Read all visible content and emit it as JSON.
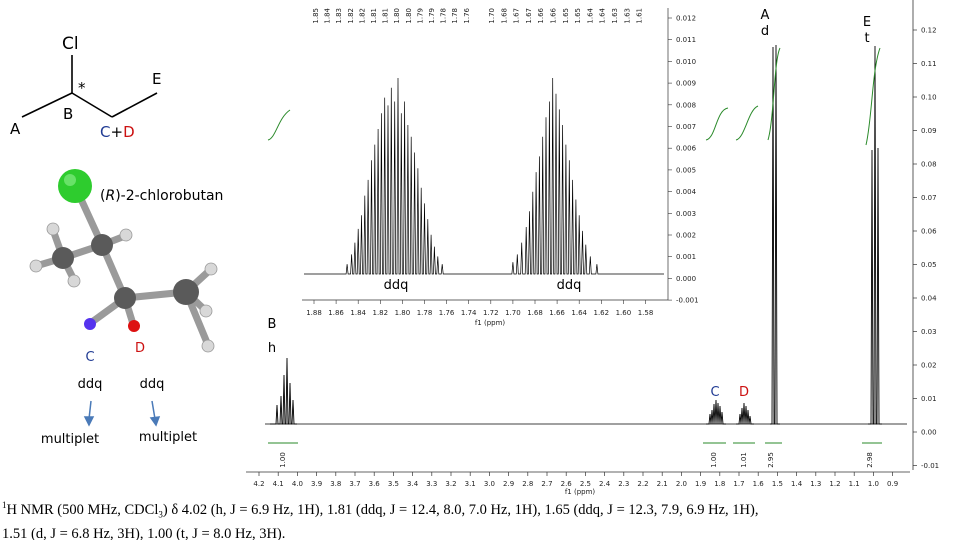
{
  "structure": {
    "cl_label": "Cl",
    "star": "*",
    "label_A": "A",
    "label_B": "B",
    "label_C": "C",
    "label_plus": "+",
    "label_D": "D",
    "label_E": "E",
    "compound_prefix": "(",
    "compound_R": "R",
    "compound_suffix": ")-2-chlorobutan"
  },
  "colors": {
    "carbon": "#555555",
    "chlorine": "#22cc22",
    "hydrogen": "#dddddd",
    "diastereotopic_C": "#5533ee",
    "diastereotopic_D": "#dd1111",
    "label_blue": "#1f3a93",
    "label_red": "#cc1111",
    "integral": "#2a8a2a",
    "arrow": "#4a7ab8"
  },
  "annotations": {
    "C_label": "C",
    "C_mult": "ddq",
    "C_desc": "multiplet",
    "D_label": "D",
    "D_mult": "ddq",
    "D_desc": "multiplet",
    "B_label": "B",
    "B_mult": "h",
    "A_label": "A",
    "A_mult": "d",
    "E_label": "E",
    "E_mult": "t",
    "C_peak_label": "C",
    "D_peak_label": "D",
    "inset_left_mult": "ddq",
    "inset_right_mult": "ddq"
  },
  "main_spectrum": {
    "x_ticks": [
      "4.2",
      "4.1",
      "4.0",
      "3.9",
      "3.8",
      "3.7",
      "3.6",
      "3.5",
      "3.4",
      "3.3",
      "3.2",
      "3.1",
      "3.0",
      "2.9",
      "2.8",
      "2.7",
      "2.6",
      "2.5",
      "2.4",
      "2.3",
      "2.2",
      "2.1",
      "2.0",
      "1.9",
      "1.8",
      "1.7",
      "1.6",
      "1.5",
      "1.4",
      "1.3",
      "1.2",
      "1.1",
      "1.0",
      "0.9"
    ],
    "x_label": "f1 (ppm)",
    "y_ticks": [
      "0.12",
      "0.11",
      "0.10",
      "0.09",
      "0.08",
      "0.07",
      "0.06",
      "0.05",
      "0.04",
      "0.03",
      "0.02",
      "0.01",
      "0.00",
      "-0.01"
    ],
    "integrals": [
      "1.00",
      "1.00",
      "1.01",
      "2.95",
      "2.98"
    ]
  },
  "inset": {
    "x_ticks": [
      "1.88",
      "1.86",
      "1.84",
      "1.82",
      "1.80",
      "1.78",
      "1.76",
      "1.74",
      "1.72",
      "1.70",
      "1.68",
      "1.66",
      "1.64",
      "1.62",
      "1.60",
      "1.58"
    ],
    "x_label": "f1 (ppm)",
    "y_ticks": [
      "0.012",
      "0.011",
      "0.010",
      "0.009",
      "0.008",
      "0.007",
      "0.006",
      "0.005",
      "0.004",
      "0.003",
      "0.002",
      "0.001",
      "0.000",
      "-0.001"
    ],
    "peak_labels_left": [
      "1.85",
      "1.84",
      "1.83",
      "1.82",
      "1.82",
      "1.81",
      "1.81",
      "1.80",
      "1.80",
      "1.79",
      "1.79",
      "1.78",
      "1.78",
      "1.76"
    ],
    "peak_labels_right": [
      "1.70",
      "1.68",
      "1.67",
      "1.67",
      "1.66",
      "1.66",
      "1.65",
      "1.65",
      "1.64",
      "1.64",
      "1.63",
      "1.63",
      "1.61"
    ]
  },
  "caption": {
    "sup": "1",
    "line1_rest": "H NMR (500 MHz, CDCl",
    "sub": "3",
    "line1_tail": ") δ 4.02 (h, J = 6.9 Hz, 1H), 1.81 (ddq, J = 12.4, 8.0, 7.0 Hz, 1H), 1.65 (ddq, J = 12.3, 7.9, 6.9 Hz, 1H),",
    "line2": "1.51 (d, J = 6.8 Hz, 3H), 1.00 (t, J = 8.0 Hz, 3H)."
  }
}
